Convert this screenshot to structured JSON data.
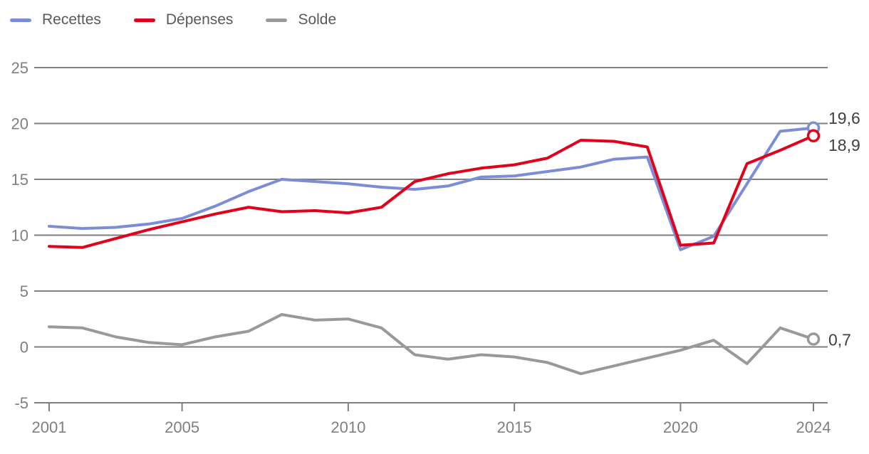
{
  "chart_data": {
    "type": "line",
    "title": "",
    "xlabel": "",
    "ylabel": "",
    "grid": true,
    "legend_position": "top-left",
    "ylim": [
      -5,
      25
    ],
    "y_ticks": [
      25,
      20,
      15,
      10,
      5,
      0,
      -5
    ],
    "x_ticks": [
      2001,
      2005,
      2010,
      2015,
      2020,
      2024
    ],
    "x": [
      2001,
      2002,
      2003,
      2004,
      2005,
      2006,
      2007,
      2008,
      2009,
      2010,
      2011,
      2012,
      2013,
      2014,
      2015,
      2016,
      2017,
      2018,
      2019,
      2020,
      2021,
      2022,
      2023,
      2024
    ],
    "series": [
      {
        "name": "Recettes",
        "color": "#7b8dd6",
        "end_label": "19,6",
        "end_marker": "open-circle",
        "values": [
          10.8,
          10.6,
          10.7,
          11.0,
          11.5,
          12.6,
          13.9,
          15.0,
          14.8,
          14.6,
          14.3,
          14.1,
          14.4,
          15.2,
          15.3,
          15.7,
          16.1,
          16.8,
          17.0,
          8.7,
          9.9,
          14.6,
          19.3,
          19.6
        ]
      },
      {
        "name": "Dépenses",
        "color": "#e2001a",
        "end_label": "18,9",
        "end_marker": "open-circle",
        "values": [
          9.0,
          8.9,
          9.7,
          10.5,
          11.2,
          11.9,
          12.5,
          12.1,
          12.2,
          12.0,
          12.5,
          14.8,
          15.5,
          16.0,
          16.3,
          16.9,
          18.5,
          18.4,
          17.9,
          9.1,
          9.3,
          16.4,
          17.6,
          18.9
        ]
      },
      {
        "name": "Solde",
        "color": "#999999",
        "end_label": "0,7",
        "end_marker": "open-circle",
        "values": [
          1.8,
          1.7,
          0.9,
          0.4,
          0.2,
          0.9,
          1.4,
          2.9,
          2.4,
          2.5,
          1.7,
          -0.7,
          -1.1,
          -0.7,
          -0.9,
          -1.4,
          -2.4,
          -1.7,
          -1.0,
          -0.3,
          0.6,
          -1.5,
          1.7,
          0.7
        ]
      }
    ],
    "axis_color": "#7f7f7f",
    "tick_label_color": "#7f7f7f",
    "end_label_color": "#404040"
  }
}
